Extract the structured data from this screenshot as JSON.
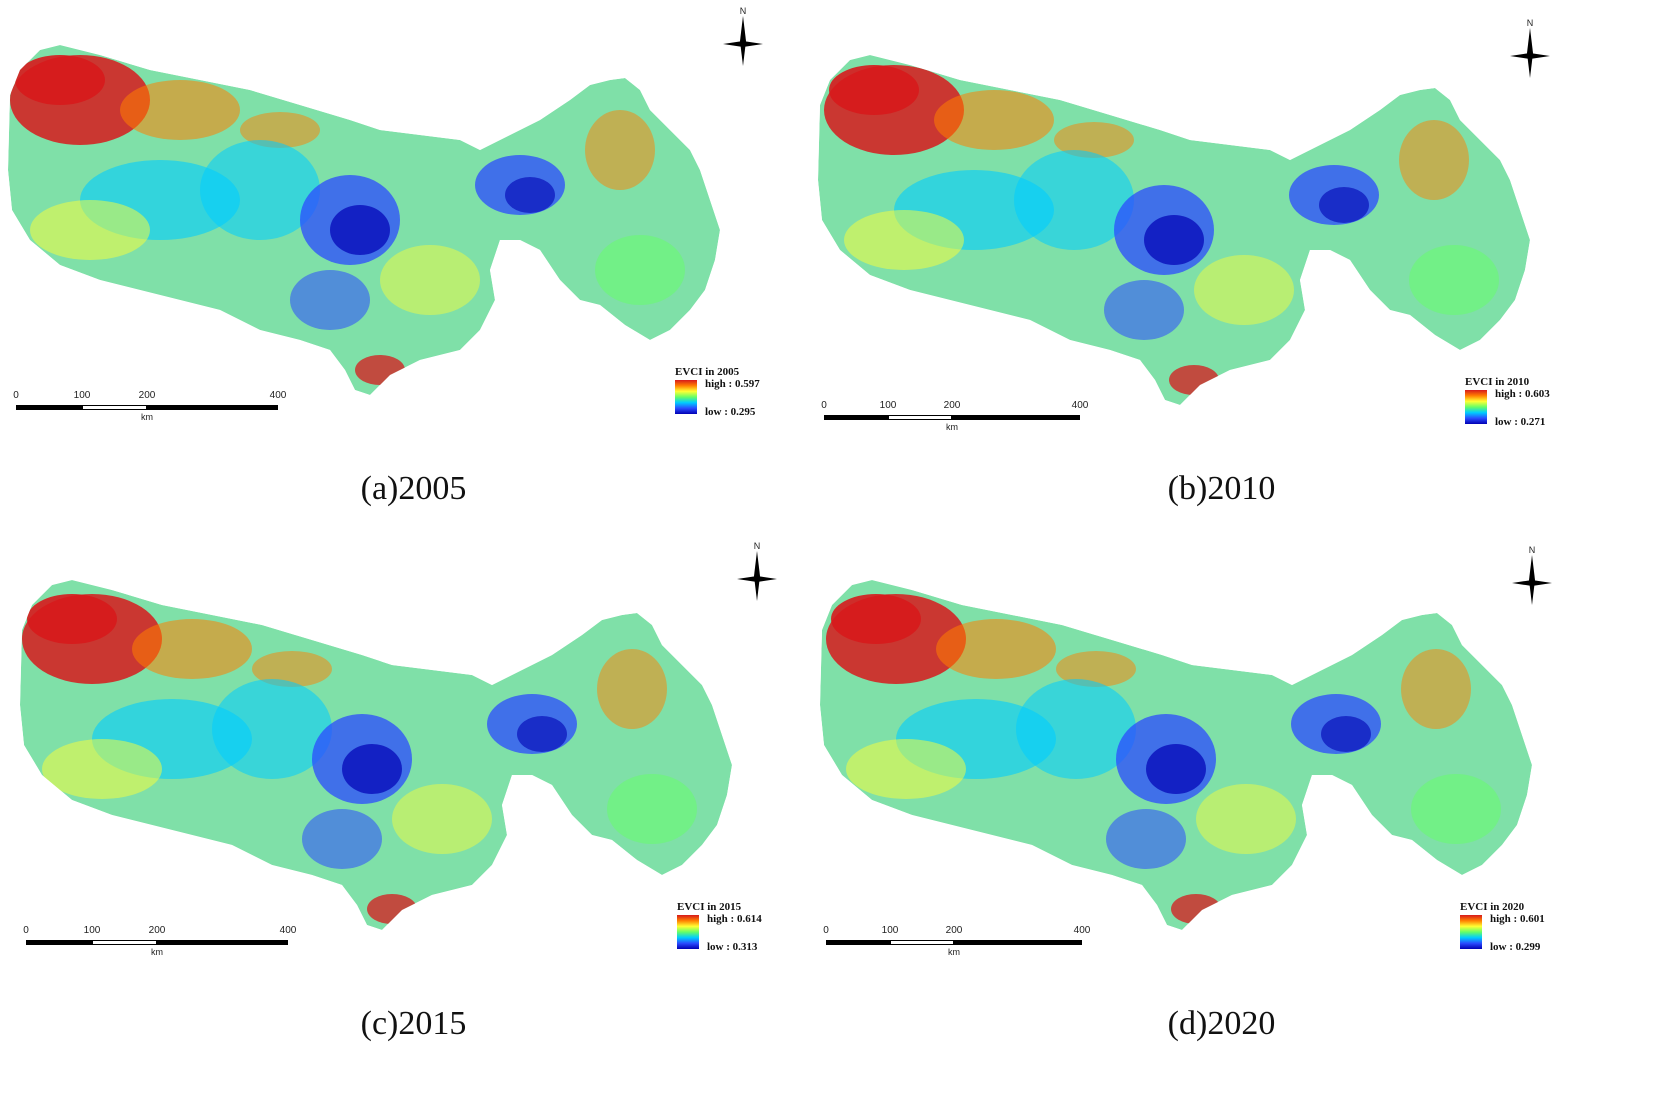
{
  "figure": {
    "panels": [
      {
        "caption": "(a)2005",
        "legend_title": "EVCI in 2005",
        "legend_high": "high : 0.597",
        "legend_low": "low : 0.295",
        "north_label": "N",
        "scale_ticks": [
          "0",
          "100",
          "200",
          "400"
        ],
        "scale_unit": "km"
      },
      {
        "caption": "(b)2010",
        "legend_title": "EVCI in 2010",
        "legend_high": "high : 0.603",
        "legend_low": "low : 0.271",
        "north_label": "N",
        "scale_ticks": [
          "0",
          "100",
          "200",
          "400"
        ],
        "scale_unit": "km"
      },
      {
        "caption": "(c)2015",
        "legend_title": "EVCI in 2015",
        "legend_high": "high : 0.614",
        "legend_low": "low : 0.313",
        "north_label": "N",
        "scale_ticks": [
          "0",
          "100",
          "200",
          "400"
        ],
        "scale_unit": "km"
      },
      {
        "caption": "(d)2020",
        "legend_title": "EVCI in 2020",
        "legend_high": "high : 0.601",
        "legend_low": "low : 0.299",
        "north_label": "N",
        "scale_ticks": [
          "0",
          "100",
          "200",
          "400"
        ],
        "scale_unit": "km"
      }
    ],
    "colors": {
      "high": "#d7191c",
      "orange": "#ff7f00",
      "yellow": "#ffff33",
      "green": "#66ff66",
      "cyan": "#00ccff",
      "blue": "#2b4bff",
      "low": "#0000b3"
    }
  }
}
